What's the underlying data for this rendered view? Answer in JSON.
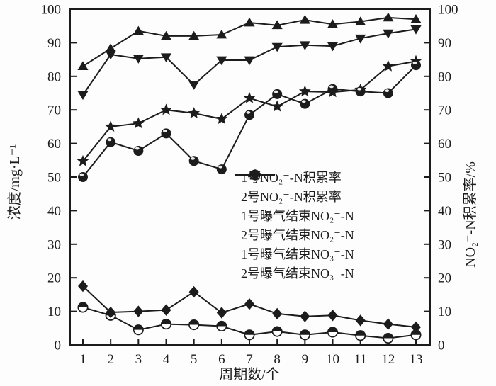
{
  "figure": {
    "background_color": "#fdfdfd",
    "ink_color": "#1c1c1c"
  },
  "chart_data": {
    "type": "line",
    "title": "",
    "x": [
      1,
      2,
      3,
      4,
      5,
      6,
      7,
      8,
      9,
      10,
      11,
      12,
      13
    ],
    "xticks": [
      1,
      2,
      3,
      4,
      5,
      6,
      7,
      8,
      9,
      10,
      11,
      12,
      13
    ],
    "xlabel": "周期数/个",
    "ylabel_left": "浓度/mg·L⁻¹",
    "ylabel_right": "NO₂⁻-N积累率/%",
    "ylim_left": [
      0,
      100
    ],
    "ylim_right": [
      0,
      100
    ],
    "yticks": [
      0,
      10,
      20,
      30,
      40,
      50,
      60,
      70,
      80,
      90,
      100
    ],
    "grid": false,
    "legend_position": "inside-middle-right",
    "series": [
      {
        "name": "1号NO₂⁻-N积累率",
        "axis": "right",
        "marker": "triangle-up",
        "values": [
          83,
          88.3,
          93.5,
          92,
          92,
          92.4,
          96,
          95.2,
          96.8,
          95.5,
          96.3,
          97.5,
          97
        ]
      },
      {
        "name": "2号NO₂⁻-N积累率",
        "axis": "right",
        "marker": "triangle-down",
        "values": [
          74.5,
          86.5,
          85.3,
          85.7,
          77.5,
          84.8,
          84.8,
          88.8,
          89.3,
          89,
          91.3,
          92.8,
          94
        ]
      },
      {
        "name": "1号曝气结束NO₂⁻-N",
        "axis": "left",
        "marker": "star",
        "values": [
          54.7,
          65,
          66,
          70,
          69,
          67.3,
          73.5,
          71,
          75.5,
          75.3,
          76,
          83,
          84.5
        ]
      },
      {
        "name": "2号曝气结束NO₂⁻-N",
        "axis": "left",
        "marker": "sphere",
        "values": [
          50,
          60.4,
          57.8,
          63,
          54.8,
          52.3,
          68.5,
          74.7,
          71.8,
          76.2,
          75.5,
          75,
          83.3
        ]
      },
      {
        "name": "1号曝气结束NO₃⁻-N",
        "axis": "left",
        "marker": "circle-top-half",
        "values": [
          11.2,
          8.8,
          4.5,
          6.2,
          6,
          5.6,
          3,
          4,
          3,
          3.8,
          2.8,
          2,
          3
        ]
      },
      {
        "name": "2号曝气结束NO₃⁻-N",
        "axis": "left",
        "marker": "diamond",
        "values": [
          17.5,
          9.7,
          10,
          10.4,
          15.8,
          9.6,
          12.2,
          9.3,
          8.5,
          8.8,
          7.3,
          6.2,
          5.3
        ]
      }
    ]
  }
}
